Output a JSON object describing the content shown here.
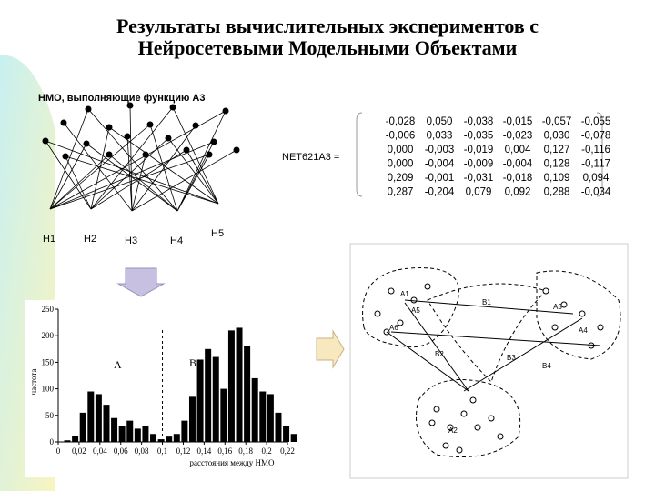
{
  "header": {
    "title_lines": [
      "Результаты вычислительных экспериментов с",
      "Нейросетевыми Модельными Объектами"
    ]
  },
  "network": {
    "caption": "НМО, выполняющие функцию А3",
    "inputs": [
      "H1",
      "H2",
      "H3",
      "H4",
      "H5"
    ]
  },
  "matrix": {
    "label": "NET621A3 =",
    "rows": [
      [
        "-0,028",
        "0,050",
        "-0,038",
        "-0,015",
        "-0,057",
        "-0,055"
      ],
      [
        "-0,006",
        "0,033",
        "-0,035",
        "-0,023",
        "0,030",
        "-0,078"
      ],
      [
        "0,000",
        "-0,003",
        "-0,019",
        "0,004",
        "0,127",
        "-0,116"
      ],
      [
        "0,000",
        "-0,004",
        "-0,009",
        "-0,004",
        "0,128",
        "-0,117"
      ],
      [
        "0,209",
        "-0,001",
        "-0,031",
        "-0,018",
        "0,109",
        "0,094"
      ],
      [
        "0,287",
        "-0,204",
        "0,079",
        "0,092",
        "0,288",
        "-0,034"
      ]
    ]
  },
  "histogram": {
    "type": "histogram",
    "ylabel": "частота",
    "xlabel": "расстояния между НМО",
    "regions": [
      "A",
      "B"
    ],
    "bins": [
      0.005,
      0.0125,
      0.02,
      0.0275,
      0.035,
      0.0425,
      0.05,
      0.0575,
      0.065,
      0.0725,
      0.08,
      0.0875,
      0.095,
      0.1025,
      0.11,
      0.1175,
      0.125,
      0.1325,
      0.14,
      0.1475,
      0.155,
      0.1625,
      0.17,
      0.1775,
      0.185,
      0.1925,
      0.2,
      0.2075,
      0.215,
      0.2225,
      0.23
    ],
    "counts": [
      3,
      12,
      55,
      95,
      90,
      70,
      45,
      30,
      40,
      25,
      30,
      15,
      5,
      10,
      15,
      40,
      85,
      155,
      175,
      160,
      100,
      210,
      215,
      180,
      120,
      95,
      90,
      55,
      30,
      15
    ],
    "color": "#000000",
    "divider": 0.1,
    "xlim": [
      0,
      0.22
    ],
    "ylim": [
      0,
      250
    ],
    "yticks": [
      0,
      50,
      100,
      150,
      200,
      250
    ],
    "xticks": [
      0,
      {
        "value": 0.02,
        "label": "0,02"
      },
      {
        "value": 0.04,
        "label": "0,04"
      },
      {
        "value": 0.06,
        "label": "0,06"
      },
      {
        "value": 0.08,
        "label": "0,08"
      },
      {
        "value": 0.1,
        "label": "0,1"
      },
      {
        "value": 0.12,
        "label": "0,12"
      },
      {
        "value": 0.14,
        "label": "0,14"
      },
      {
        "value": 0.16,
        "label": "0,16"
      },
      {
        "value": 0.18,
        "label": "0,18"
      },
      {
        "value": 0.2,
        "label": "0,2"
      },
      {
        "value": 0.22,
        "label": "0,22"
      }
    ]
  },
  "clusters": {
    "labels": [
      "A1",
      "A5",
      "B1",
      "A3",
      "A4",
      "A6",
      "B2",
      "B3",
      "B4",
      "A2"
    ]
  }
}
